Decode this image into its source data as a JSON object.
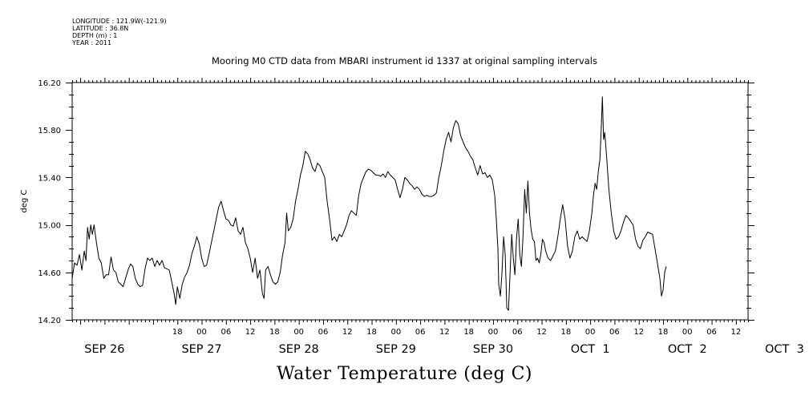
{
  "header": {
    "longitude": "LONGITUDE : 121.9W(-121.9)",
    "latitude": "LATITUDE : 36.8N",
    "depth": "DEPTH (m) : 1",
    "year": "YEAR : 2011"
  },
  "chart_data": {
    "type": "line",
    "title": "Mooring M0 CTD data from MBARI instrument id 1337 at original sampling intervals",
    "xlabel": "Water Temperature (deg C)",
    "ylabel": "deg C",
    "ylim": [
      14.2,
      16.2
    ],
    "yticks": [
      "14.20",
      "14.60",
      "15.00",
      "15.40",
      "15.80",
      "16.20"
    ],
    "xlim_hours": [
      -8,
      159
    ],
    "hour_tick_labels": [
      {
        "h": 18,
        "t": "18"
      },
      {
        "h": 24,
        "t": "00"
      },
      {
        "h": 30,
        "t": "06"
      },
      {
        "h": 36,
        "t": "12"
      },
      {
        "h": 42,
        "t": "18"
      },
      {
        "h": 48,
        "t": "00"
      },
      {
        "h": 54,
        "t": "06"
      },
      {
        "h": 60,
        "t": "12"
      },
      {
        "h": 66,
        "t": "18"
      },
      {
        "h": 72,
        "t": "00"
      },
      {
        "h": 78,
        "t": "06"
      },
      {
        "h": 84,
        "t": "12"
      },
      {
        "h": 90,
        "t": "18"
      },
      {
        "h": 96,
        "t": "00"
      },
      {
        "h": 102,
        "t": "06"
      },
      {
        "h": 108,
        "t": "12"
      },
      {
        "h": 114,
        "t": "18"
      },
      {
        "h": 120,
        "t": "00"
      },
      {
        "h": 126,
        "t": "06"
      },
      {
        "h": 132,
        "t": "12"
      },
      {
        "h": 138,
        "t": "18"
      },
      {
        "h": 144,
        "t": "00"
      },
      {
        "h": 150,
        "t": "06"
      },
      {
        "h": 156,
        "t": "12"
      }
    ],
    "day_labels": [
      {
        "h": 0,
        "t": "SEP 26"
      },
      {
        "h": 24,
        "t": "SEP 27"
      },
      {
        "h": 48,
        "t": "SEP 28"
      },
      {
        "h": 72,
        "t": "SEP 29"
      },
      {
        "h": 96,
        "t": "SEP 30"
      },
      {
        "h": 120,
        "t": "OCT  1"
      },
      {
        "h": 144,
        "t": "OCT  2"
      },
      {
        "h": 168,
        "t": "OCT  3"
      }
    ],
    "series": [
      {
        "color": "#000000",
        "points": [
          [
            -8.0,
            14.55
          ],
          [
            -7.4,
            14.68
          ],
          [
            -6.8,
            14.66
          ],
          [
            -6.2,
            14.75
          ],
          [
            -5.6,
            14.62
          ],
          [
            -5.0,
            14.78
          ],
          [
            -4.6,
            14.7
          ],
          [
            -4.2,
            14.98
          ],
          [
            -3.8,
            14.88
          ],
          [
            -3.4,
            15.0
          ],
          [
            -3.0,
            14.92
          ],
          [
            -2.6,
            15.0
          ],
          [
            -2.0,
            14.85
          ],
          [
            -1.4,
            14.72
          ],
          [
            -0.8,
            14.68
          ],
          [
            -0.2,
            14.55
          ],
          [
            0.4,
            14.58
          ],
          [
            1.0,
            14.58
          ],
          [
            1.6,
            14.73
          ],
          [
            2.2,
            14.62
          ],
          [
            2.8,
            14.6
          ],
          [
            3.4,
            14.52
          ],
          [
            4.0,
            14.5
          ],
          [
            4.6,
            14.48
          ],
          [
            5.2,
            14.55
          ],
          [
            5.8,
            14.62
          ],
          [
            6.4,
            14.67
          ],
          [
            7.0,
            14.65
          ],
          [
            7.6,
            14.55
          ],
          [
            8.2,
            14.5
          ],
          [
            8.8,
            14.48
          ],
          [
            9.4,
            14.49
          ],
          [
            10.0,
            14.63
          ],
          [
            10.6,
            14.72
          ],
          [
            11.2,
            14.7
          ],
          [
            11.8,
            14.72
          ],
          [
            12.4,
            14.65
          ],
          [
            13.0,
            14.7
          ],
          [
            13.6,
            14.66
          ],
          [
            14.2,
            14.7
          ],
          [
            14.8,
            14.64
          ],
          [
            15.4,
            14.63
          ],
          [
            16.0,
            14.62
          ],
          [
            16.6,
            14.52
          ],
          [
            17.2,
            14.42
          ],
          [
            17.6,
            14.33
          ],
          [
            18.0,
            14.48
          ],
          [
            18.6,
            14.38
          ],
          [
            19.2,
            14.5
          ],
          [
            19.8,
            14.56
          ],
          [
            20.4,
            14.6
          ],
          [
            21.0,
            14.66
          ],
          [
            21.6,
            14.76
          ],
          [
            22.2,
            14.82
          ],
          [
            22.8,
            14.9
          ],
          [
            23.4,
            14.84
          ],
          [
            24.0,
            14.72
          ],
          [
            24.6,
            14.65
          ],
          [
            25.2,
            14.66
          ],
          [
            25.8,
            14.75
          ],
          [
            26.4,
            14.85
          ],
          [
            27.0,
            14.95
          ],
          [
            27.6,
            15.05
          ],
          [
            28.2,
            15.15
          ],
          [
            28.8,
            15.2
          ],
          [
            29.4,
            15.12
          ],
          [
            30.0,
            15.05
          ],
          [
            30.6,
            15.04
          ],
          [
            31.2,
            15.0
          ],
          [
            31.8,
            14.99
          ],
          [
            32.4,
            15.06
          ],
          [
            33.0,
            14.95
          ],
          [
            33.6,
            14.92
          ],
          [
            34.2,
            14.98
          ],
          [
            34.8,
            14.85
          ],
          [
            35.4,
            14.8
          ],
          [
            36.0,
            14.72
          ],
          [
            36.6,
            14.6
          ],
          [
            37.2,
            14.72
          ],
          [
            37.8,
            14.55
          ],
          [
            38.4,
            14.62
          ],
          [
            39.0,
            14.42
          ],
          [
            39.4,
            14.38
          ],
          [
            39.8,
            14.62
          ],
          [
            40.4,
            14.65
          ],
          [
            41.0,
            14.58
          ],
          [
            41.6,
            14.52
          ],
          [
            42.2,
            14.5
          ],
          [
            42.8,
            14.52
          ],
          [
            43.4,
            14.6
          ],
          [
            44.0,
            14.75
          ],
          [
            44.6,
            14.85
          ],
          [
            45.0,
            15.1
          ],
          [
            45.4,
            14.95
          ],
          [
            46.0,
            14.98
          ],
          [
            46.6,
            15.05
          ],
          [
            47.2,
            15.2
          ],
          [
            47.8,
            15.3
          ],
          [
            48.4,
            15.42
          ],
          [
            49.0,
            15.5
          ],
          [
            49.6,
            15.62
          ],
          [
            50.2,
            15.6
          ],
          [
            50.8,
            15.55
          ],
          [
            51.4,
            15.48
          ],
          [
            52.0,
            15.45
          ],
          [
            52.6,
            15.52
          ],
          [
            53.2,
            15.5
          ],
          [
            53.8,
            15.45
          ],
          [
            54.4,
            15.4
          ],
          [
            55.0,
            15.2
          ],
          [
            55.6,
            15.05
          ],
          [
            56.2,
            14.87
          ],
          [
            56.8,
            14.9
          ],
          [
            57.4,
            14.86
          ],
          [
            58.0,
            14.92
          ],
          [
            58.6,
            14.9
          ],
          [
            59.2,
            14.95
          ],
          [
            59.8,
            15.0
          ],
          [
            60.4,
            15.08
          ],
          [
            61.0,
            15.12
          ],
          [
            61.6,
            15.1
          ],
          [
            62.2,
            15.08
          ],
          [
            62.8,
            15.25
          ],
          [
            63.4,
            15.35
          ],
          [
            64.0,
            15.4
          ],
          [
            64.6,
            15.45
          ],
          [
            65.2,
            15.47
          ],
          [
            65.8,
            15.46
          ],
          [
            66.4,
            15.44
          ],
          [
            67.0,
            15.42
          ],
          [
            67.6,
            15.42
          ],
          [
            68.2,
            15.41
          ],
          [
            68.8,
            15.43
          ],
          [
            69.4,
            15.4
          ],
          [
            70.0,
            15.45
          ],
          [
            70.6,
            15.42
          ],
          [
            71.2,
            15.4
          ],
          [
            71.8,
            15.38
          ],
          [
            72.4,
            15.3
          ],
          [
            73.0,
            15.23
          ],
          [
            73.6,
            15.3
          ],
          [
            74.2,
            15.4
          ],
          [
            74.8,
            15.38
          ],
          [
            75.4,
            15.35
          ],
          [
            76.0,
            15.33
          ],
          [
            76.6,
            15.3
          ],
          [
            77.2,
            15.32
          ],
          [
            77.8,
            15.3
          ],
          [
            78.4,
            15.26
          ],
          [
            79.0,
            15.24
          ],
          [
            79.6,
            15.25
          ],
          [
            80.2,
            15.24
          ],
          [
            80.8,
            15.24
          ],
          [
            81.4,
            15.25
          ],
          [
            82.0,
            15.27
          ],
          [
            82.6,
            15.4
          ],
          [
            83.2,
            15.5
          ],
          [
            83.8,
            15.62
          ],
          [
            84.4,
            15.72
          ],
          [
            85.0,
            15.78
          ],
          [
            85.6,
            15.7
          ],
          [
            86.2,
            15.82
          ],
          [
            86.8,
            15.88
          ],
          [
            87.4,
            15.85
          ],
          [
            88.0,
            15.75
          ],
          [
            88.6,
            15.7
          ],
          [
            89.2,
            15.65
          ],
          [
            89.8,
            15.62
          ],
          [
            90.4,
            15.58
          ],
          [
            91.0,
            15.55
          ],
          [
            91.6,
            15.48
          ],
          [
            92.2,
            15.42
          ],
          [
            92.8,
            15.5
          ],
          [
            93.4,
            15.43
          ],
          [
            94.0,
            15.44
          ],
          [
            94.6,
            15.4
          ],
          [
            95.2,
            15.42
          ],
          [
            95.8,
            15.38
          ],
          [
            96.4,
            15.25
          ],
          [
            96.8,
            15.05
          ],
          [
            97.2,
            14.8
          ],
          [
            97.4,
            14.5
          ],
          [
            97.8,
            14.4
          ],
          [
            98.2,
            14.6
          ],
          [
            98.6,
            14.9
          ],
          [
            99.0,
            14.75
          ],
          [
            99.4,
            14.3
          ],
          [
            99.8,
            14.28
          ],
          [
            100.2,
            14.6
          ],
          [
            100.6,
            14.92
          ],
          [
            101.0,
            14.72
          ],
          [
            101.4,
            14.58
          ],
          [
            101.8,
            14.9
          ],
          [
            102.2,
            15.05
          ],
          [
            102.6,
            14.75
          ],
          [
            103.0,
            14.65
          ],
          [
            103.4,
            14.9
          ],
          [
            103.8,
            15.3
          ],
          [
            104.2,
            15.1
          ],
          [
            104.6,
            15.37
          ],
          [
            105.0,
            15.1
          ],
          [
            105.4,
            14.96
          ],
          [
            105.8,
            14.88
          ],
          [
            106.2,
            14.86
          ],
          [
            106.6,
            14.7
          ],
          [
            107.0,
            14.72
          ],
          [
            107.4,
            14.68
          ],
          [
            107.8,
            14.75
          ],
          [
            108.2,
            14.88
          ],
          [
            108.6,
            14.85
          ],
          [
            109.0,
            14.78
          ],
          [
            109.6,
            14.72
          ],
          [
            110.2,
            14.7
          ],
          [
            110.8,
            14.74
          ],
          [
            111.4,
            14.78
          ],
          [
            112.0,
            14.9
          ],
          [
            112.6,
            15.05
          ],
          [
            113.2,
            15.17
          ],
          [
            113.8,
            15.05
          ],
          [
            114.4,
            14.82
          ],
          [
            115.0,
            14.72
          ],
          [
            115.6,
            14.78
          ],
          [
            116.2,
            14.9
          ],
          [
            116.8,
            14.95
          ],
          [
            117.4,
            14.88
          ],
          [
            118.0,
            14.9
          ],
          [
            118.6,
            14.88
          ],
          [
            119.2,
            14.86
          ],
          [
            119.8,
            14.95
          ],
          [
            120.4,
            15.1
          ],
          [
            120.8,
            15.25
          ],
          [
            121.2,
            15.35
          ],
          [
            121.6,
            15.3
          ],
          [
            122.0,
            15.45
          ],
          [
            122.4,
            15.55
          ],
          [
            122.7,
            15.8
          ],
          [
            123.0,
            16.08
          ],
          [
            123.3,
            15.72
          ],
          [
            123.6,
            15.78
          ],
          [
            124.0,
            15.6
          ],
          [
            124.6,
            15.3
          ],
          [
            125.2,
            15.1
          ],
          [
            125.8,
            14.95
          ],
          [
            126.4,
            14.88
          ],
          [
            127.0,
            14.9
          ],
          [
            127.6,
            14.95
          ],
          [
            128.2,
            15.02
          ],
          [
            128.8,
            15.08
          ],
          [
            129.4,
            15.06
          ],
          [
            130.0,
            15.03
          ],
          [
            130.6,
            15.0
          ],
          [
            131.2,
            14.88
          ],
          [
            131.8,
            14.82
          ],
          [
            132.4,
            14.8
          ],
          [
            133.0,
            14.87
          ],
          [
            133.6,
            14.9
          ],
          [
            134.2,
            14.94
          ],
          [
            134.8,
            14.93
          ],
          [
            135.4,
            14.92
          ],
          [
            136.0,
            14.8
          ],
          [
            136.6,
            14.68
          ],
          [
            137.2,
            14.55
          ],
          [
            137.6,
            14.4
          ],
          [
            138.0,
            14.45
          ],
          [
            138.4,
            14.6
          ],
          [
            138.8,
            14.65
          ]
        ]
      }
    ]
  }
}
